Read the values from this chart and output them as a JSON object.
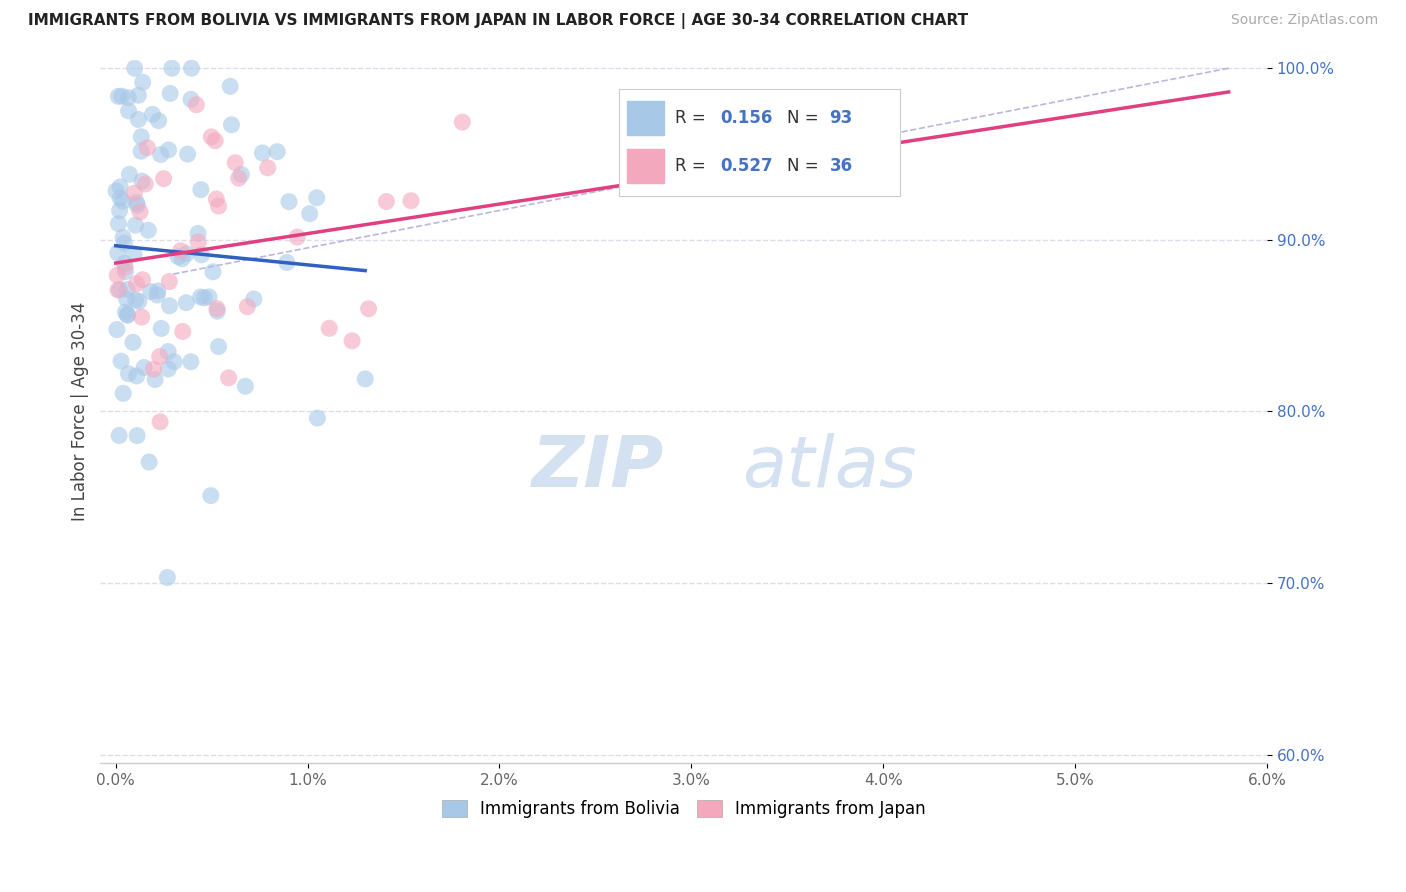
{
  "title": "IMMIGRANTS FROM BOLIVIA VS IMMIGRANTS FROM JAPAN IN LABOR FORCE | AGE 30-34 CORRELATION CHART",
  "source": "Source: ZipAtlas.com",
  "ylabel": "In Labor Force | Age 30-34",
  "xlim": [
    0.0,
    6.0
  ],
  "ylim": [
    60.0,
    100.0
  ],
  "xtick_vals": [
    0.0,
    1.0,
    2.0,
    3.0,
    4.0,
    5.0,
    6.0
  ],
  "ytick_vals": [
    60.0,
    70.0,
    80.0,
    90.0,
    100.0
  ],
  "xtick_labels": [
    "0.0%",
    "1.0%",
    "2.0%",
    "3.0%",
    "4.0%",
    "5.0%",
    "6.0%"
  ],
  "ytick_labels": [
    "60.0%",
    "70.0%",
    "80.0%",
    "90.0%",
    "100.0%"
  ],
  "bolivia_color": "#a8c8e8",
  "japan_color": "#f4a8be",
  "bolivia_line_color": "#3060c0",
  "japan_line_color": "#e04080",
  "bolivia_R": 0.156,
  "bolivia_N": 93,
  "japan_R": 0.527,
  "japan_N": 36,
  "legend_label_bolivia": "Immigrants from Bolivia",
  "legend_label_japan": "Immigrants from Japan",
  "watermark_zip_color": "#c8daf0",
  "watermark_atlas_color": "#c8daf0",
  "ref_line_color": "#aaaacc",
  "title_color": "#222222",
  "source_color": "#aaaaaa",
  "ylabel_color": "#444444",
  "ytick_color": "#4472c4",
  "xtick_color": "#666666",
  "grid_color": "#ddddee"
}
